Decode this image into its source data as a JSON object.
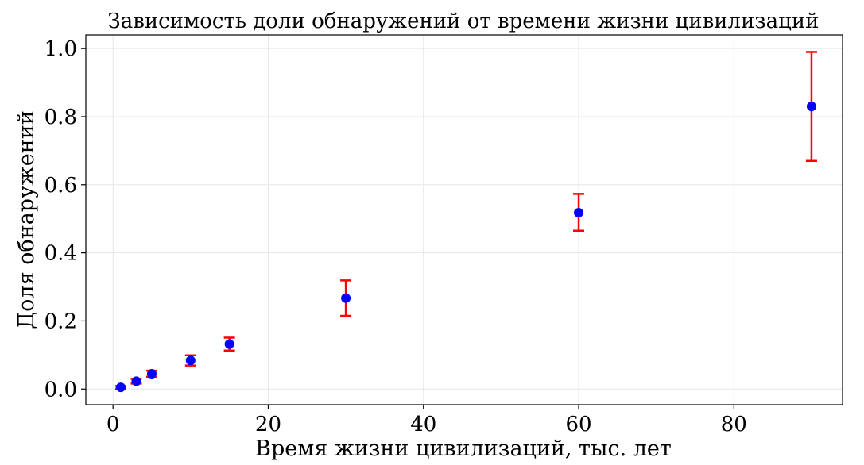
{
  "chart_data": {
    "type": "scatter",
    "title": "Зависимость доли обнаружений от времени жизни цивилизаций",
    "xlabel": "Время жизни цивилизаций, тыс. лет",
    "ylabel": "Доля обнаружений",
    "xlim": [
      -3.5,
      94
    ],
    "ylim": [
      -0.046,
      1.04
    ],
    "grid": true,
    "legend": "none",
    "xticks": [
      0,
      20,
      40,
      60,
      80
    ],
    "xtick_labels": [
      "0",
      "20",
      "40",
      "60",
      "80"
    ],
    "yticks": [
      0.0,
      0.2,
      0.4,
      0.6,
      0.8,
      1.0
    ],
    "ytick_labels": [
      "0.0",
      "0.2",
      "0.4",
      "0.6",
      "0.8",
      "1.0"
    ],
    "colors": {
      "point": "#0000ff",
      "errorbar": "#ff0000",
      "grid": "#e6e6e6",
      "axis": "#000000"
    },
    "points": [
      {
        "x": 1,
        "y": 0.005,
        "err_low": 0.001,
        "err_high": 0.009
      },
      {
        "x": 3,
        "y": 0.023,
        "err_low": 0.016,
        "err_high": 0.03
      },
      {
        "x": 5,
        "y": 0.045,
        "err_low": 0.036,
        "err_high": 0.054
      },
      {
        "x": 10,
        "y": 0.084,
        "err_low": 0.069,
        "err_high": 0.099
      },
      {
        "x": 15,
        "y": 0.132,
        "err_low": 0.113,
        "err_high": 0.151
      },
      {
        "x": 30,
        "y": 0.267,
        "err_low": 0.215,
        "err_high": 0.319
      },
      {
        "x": 60,
        "y": 0.518,
        "err_low": 0.465,
        "err_high": 0.573
      },
      {
        "x": 90,
        "y": 0.83,
        "err_low": 0.67,
        "err_high": 0.99
      }
    ]
  }
}
